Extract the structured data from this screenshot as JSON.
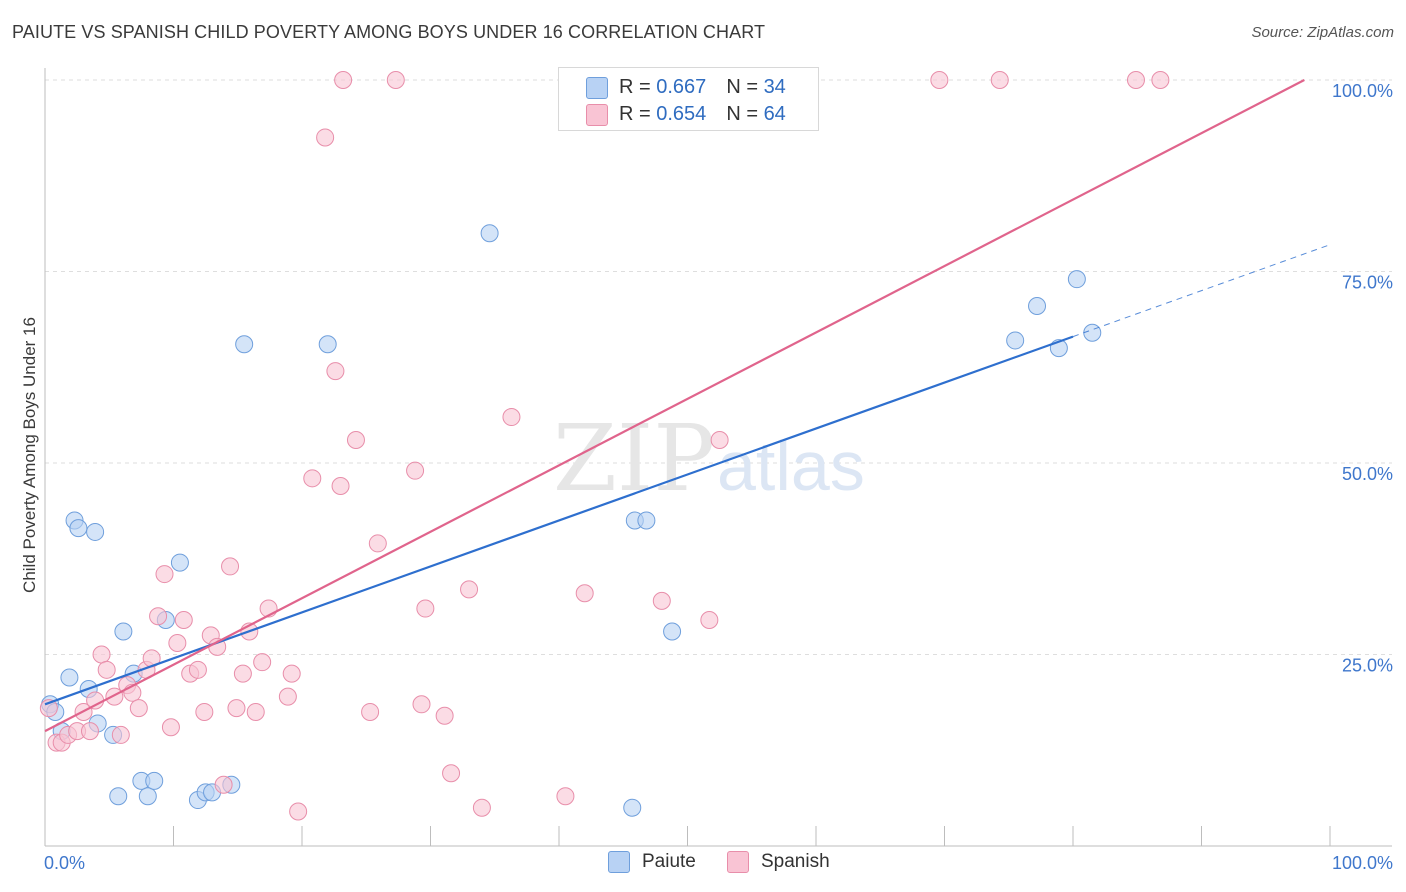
{
  "header": {
    "title": "PAIUTE VS SPANISH CHILD POVERTY AMONG BOYS UNDER 16 CORRELATION CHART",
    "source": "Source: ZipAtlas.com"
  },
  "watermark": {
    "part1": "ZIP",
    "part2": "atlas"
  },
  "colors": {
    "paiute_fill": "#b8d2f4",
    "paiute_stroke": "#6f9fdc",
    "paiute_line": "#2e6fce",
    "spanish_fill": "#f9c4d4",
    "spanish_stroke": "#e88eaa",
    "spanish_line": "#e0648c",
    "axis_label": "#3f77cc",
    "grid": "#dedede"
  },
  "legend_top": [
    {
      "r_label": "R =",
      "r_value": "0.667",
      "n_label": "N =",
      "n_value": "34"
    },
    {
      "r_label": "R =",
      "r_value": "0.654",
      "n_label": "N =",
      "n_value": "64"
    }
  ],
  "legend_bottom": [
    "Paiute",
    "Spanish"
  ],
  "chart_data": {
    "type": "scatter",
    "title": "PAIUTE VS SPANISH CHILD POVERTY AMONG BOYS UNDER 16 CORRELATION CHART",
    "xlabel": "",
    "ylabel": "Child Poverty Among Boys Under 16",
    "xlim": [
      0,
      100
    ],
    "ylim": [
      0,
      100
    ],
    "x_tick_labels": [
      "0.0%",
      "100.0%"
    ],
    "y_tick_labels": [
      {
        "value": 25,
        "label": "25.0%"
      },
      {
        "value": 50,
        "label": "50.0%"
      },
      {
        "value": 75,
        "label": "75.0%"
      },
      {
        "value": 100,
        "label": "100.0%"
      }
    ],
    "grid": true,
    "series": [
      {
        "name": "Paiute",
        "r": 0.667,
        "n": 34,
        "trend": {
          "x0": 0,
          "y0": 18.5,
          "x1": 80,
          "y1": 66.5,
          "dashed_to_x": 100,
          "dashed_to_y": 78.5
        },
        "points": [
          [
            0.4,
            18.5
          ],
          [
            0.8,
            17.5
          ],
          [
            1.3,
            15
          ],
          [
            1.9,
            22
          ],
          [
            2.3,
            42.5
          ],
          [
            2.6,
            41.5
          ],
          [
            3.4,
            20.5
          ],
          [
            3.9,
            41
          ],
          [
            4.1,
            16
          ],
          [
            5.3,
            14.5
          ],
          [
            5.7,
            6.5
          ],
          [
            6.1,
            28
          ],
          [
            6.9,
            22.5
          ],
          [
            7.5,
            8.5
          ],
          [
            8.0,
            6.5
          ],
          [
            8.5,
            8.5
          ],
          [
            9.4,
            29.5
          ],
          [
            10.5,
            37
          ],
          [
            11.9,
            6
          ],
          [
            12.5,
            7
          ],
          [
            13.0,
            7
          ],
          [
            14.5,
            8
          ],
          [
            15.5,
            65.5
          ],
          [
            22.0,
            65.5
          ],
          [
            34.6,
            80
          ],
          [
            45.7,
            5
          ],
          [
            45.9,
            42.5
          ],
          [
            46.8,
            42.5
          ],
          [
            48.8,
            28
          ],
          [
            75.5,
            66
          ],
          [
            77.2,
            70.5
          ],
          [
            78.9,
            65
          ],
          [
            80.3,
            74
          ],
          [
            81.5,
            67
          ]
        ]
      },
      {
        "name": "Spanish",
        "r": 0.654,
        "n": 64,
        "trend": {
          "x0": 0,
          "y0": 15,
          "x1": 98,
          "y1": 100
        },
        "points": [
          [
            0.3,
            18
          ],
          [
            0.9,
            13.5
          ],
          [
            1.3,
            13.5
          ],
          [
            1.8,
            14.5
          ],
          [
            2.5,
            15
          ],
          [
            3.0,
            17.5
          ],
          [
            3.5,
            15
          ],
          [
            3.9,
            19
          ],
          [
            4.4,
            25
          ],
          [
            4.8,
            23
          ],
          [
            5.4,
            19.5
          ],
          [
            5.9,
            14.5
          ],
          [
            6.4,
            21
          ],
          [
            6.8,
            20
          ],
          [
            7.3,
            18
          ],
          [
            7.9,
            23
          ],
          [
            8.3,
            24.5
          ],
          [
            8.8,
            30
          ],
          [
            9.3,
            35.5
          ],
          [
            9.8,
            15.5
          ],
          [
            10.3,
            26.5
          ],
          [
            10.8,
            29.5
          ],
          [
            11.3,
            22.5
          ],
          [
            11.9,
            23
          ],
          [
            12.4,
            17.5
          ],
          [
            12.9,
            27.5
          ],
          [
            13.4,
            26
          ],
          [
            13.9,
            8
          ],
          [
            14.4,
            36.5
          ],
          [
            14.9,
            18
          ],
          [
            15.4,
            22.5
          ],
          [
            15.9,
            28
          ],
          [
            16.4,
            17.5
          ],
          [
            16.9,
            24
          ],
          [
            17.4,
            31
          ],
          [
            18.9,
            19.5
          ],
          [
            19.2,
            22.5
          ],
          [
            19.7,
            4.5
          ],
          [
            20.8,
            48
          ],
          [
            21.8,
            92.5
          ],
          [
            22.6,
            62
          ],
          [
            23.0,
            47
          ],
          [
            23.2,
            100
          ],
          [
            24.2,
            53
          ],
          [
            25.3,
            17.5
          ],
          [
            25.9,
            39.5
          ],
          [
            27.3,
            100
          ],
          [
            28.8,
            49
          ],
          [
            29.3,
            18.5
          ],
          [
            29.6,
            31
          ],
          [
            31.1,
            17
          ],
          [
            31.6,
            9.5
          ],
          [
            33.0,
            33.5
          ],
          [
            34.0,
            5
          ],
          [
            36.3,
            56
          ],
          [
            40.5,
            6.5
          ],
          [
            42.0,
            33
          ],
          [
            48.0,
            32
          ],
          [
            51.7,
            29.5
          ],
          [
            52.5,
            53
          ],
          [
            69.6,
            100
          ],
          [
            74.3,
            100
          ],
          [
            84.9,
            100
          ],
          [
            86.8,
            100
          ]
        ]
      }
    ]
  }
}
